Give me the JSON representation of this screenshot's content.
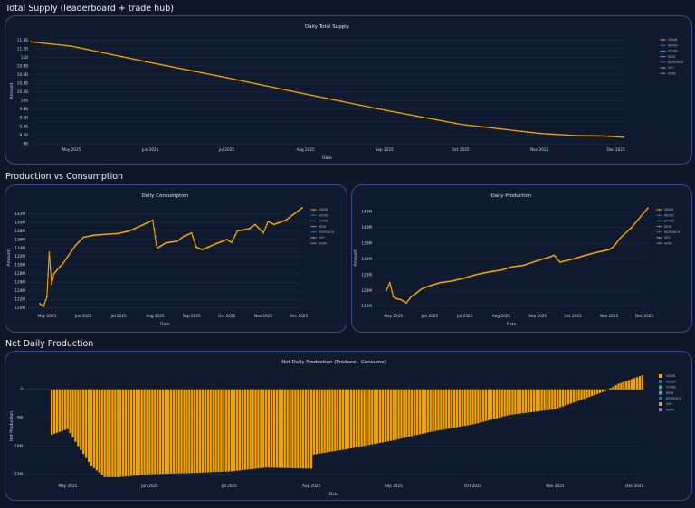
{
  "sections": {
    "supply": "Total Supply (leaderboard + trade hub)",
    "prodcons": "Production vs Consumption",
    "net": "Net Daily Production"
  },
  "legend_items": [
    "GRAIN",
    "WOOD",
    "STONE",
    "IRON",
    "RESEARCH",
    "GPU",
    "AURA"
  ],
  "colors": {
    "accent": "#f5a300",
    "background": "#0e1627",
    "panel_border": "#3b4a8a",
    "legend_colors": [
      "#f5a300",
      "#4d5ea8",
      "#4aa37b",
      "#7a8aa6",
      "#2f6f9a",
      "#c7a33d",
      "#8a78c7"
    ]
  },
  "chart_data": [
    {
      "id": "supply",
      "type": "line",
      "title": "Daily Total Supply",
      "xlabel": "Date",
      "ylabel": "Amount",
      "x_start": "2025-04-15",
      "x_end": "2025-12-04",
      "ylim": [
        9000000000,
        11450000000
      ],
      "yticks": [
        9000000000,
        9200000000,
        9400000000,
        9600000000,
        9800000000,
        10000000000,
        10200000000,
        10400000000,
        10600000000,
        10800000000,
        11000000000,
        11200000000,
        11400000000
      ],
      "ytick_labels": [
        "9B",
        "9.2B",
        "9.4B",
        "9.6B",
        "9.8B",
        "10B",
        "10.2B",
        "10.4B",
        "10.6B",
        "10.8B",
        "11B",
        "11.2B",
        "11.4B"
      ],
      "xticks": [
        "May 2025",
        "Jun 2025",
        "Jul 2025",
        "Aug 2025",
        "Sep 2025",
        "Oct 2025",
        "Nov 2025",
        "Dec 2025"
      ],
      "grid": true,
      "legend_position": "right",
      "series": [
        {
          "name": "GRAIN",
          "x": [
            "2025-04-15",
            "2025-05-01",
            "2025-06-01",
            "2025-07-01",
            "2025-08-01",
            "2025-09-01",
            "2025-10-01",
            "2025-10-20",
            "2025-11-01",
            "2025-11-15",
            "2025-11-26",
            "2025-12-04"
          ],
          "y": [
            11360000000,
            11260000000,
            10880000000,
            10530000000,
            10150000000,
            9780000000,
            9450000000,
            9320000000,
            9240000000,
            9190000000,
            9180000000,
            9150000000
          ]
        }
      ]
    },
    {
      "id": "consumption",
      "type": "line",
      "title": "Daily Consumption",
      "xlabel": "Date",
      "ylabel": "Amount",
      "x_start": "2025-04-15",
      "x_end": "2025-12-04",
      "ylim": [
        119500000,
        143800000
      ],
      "yticks": [
        120000000,
        122000000,
        124000000,
        126000000,
        128000000,
        130000000,
        132000000,
        134000000,
        136000000,
        138000000,
        140000000,
        142000000
      ],
      "ytick_labels": [
        "120M",
        "122M",
        "124M",
        "126M",
        "128M",
        "130M",
        "132M",
        "134M",
        "136M",
        "138M",
        "140M",
        "142M"
      ],
      "xticks": [
        "May 2025",
        "Jun 2025",
        "Jul 2025",
        "Aug 2025",
        "Sep 2025",
        "Oct 2025",
        "Nov 2025",
        "Dec 2025"
      ],
      "grid": true,
      "legend_position": "right",
      "series": [
        {
          "name": "GRAIN",
          "x": [
            "2025-04-25",
            "2025-04-28",
            "2025-05-01",
            "2025-05-03",
            "2025-05-05",
            "2025-05-07",
            "2025-05-10",
            "2025-05-15",
            "2025-05-20",
            "2025-05-25",
            "2025-06-01",
            "2025-06-10",
            "2025-06-20",
            "2025-07-01",
            "2025-07-10",
            "2025-07-20",
            "2025-07-30",
            "2025-08-02",
            "2025-08-03",
            "2025-08-10",
            "2025-08-20",
            "2025-08-25",
            "2025-09-01",
            "2025-09-05",
            "2025-09-10",
            "2025-09-20",
            "2025-10-01",
            "2025-10-05",
            "2025-10-10",
            "2025-10-20",
            "2025-10-25",
            "2025-11-01",
            "2025-11-05",
            "2025-11-10",
            "2025-11-20",
            "2025-12-04"
          ],
          "y": [
            121000000,
            120300000,
            122500000,
            133000000,
            125500000,
            128000000,
            129000000,
            130500000,
            132500000,
            134500000,
            136500000,
            137000000,
            137200000,
            137400000,
            138000000,
            139200000,
            140500000,
            134800000,
            134000000,
            135200000,
            135600000,
            136700000,
            137500000,
            134200000,
            133600000,
            134800000,
            136000000,
            135300000,
            138000000,
            138500000,
            139500000,
            137500000,
            140200000,
            139500000,
            140500000,
            143400000
          ]
        }
      ]
    },
    {
      "id": "production",
      "type": "line",
      "title": "Daily Production",
      "xlabel": "Date",
      "ylabel": "Amount",
      "x_start": "2025-04-15",
      "x_end": "2025-12-04",
      "ylim": [
        113800000,
        146800000
      ],
      "yticks": [
        115000000,
        120000000,
        125000000,
        130000000,
        135000000,
        140000000,
        145000000
      ],
      "ytick_labels": [
        "115M",
        "120M",
        "125M",
        "130M",
        "135M",
        "140M",
        "145M"
      ],
      "xticks": [
        "May 2025",
        "Jun 2025",
        "Jul 2025",
        "Aug 2025",
        "Sep 2025",
        "Oct 2025",
        "Nov 2025",
        "Dec 2025"
      ],
      "grid": true,
      "legend_position": "right",
      "series": [
        {
          "name": "GRAIN",
          "x": [
            "2025-04-25",
            "2025-04-28",
            "2025-05-01",
            "2025-05-03",
            "2025-05-08",
            "2025-05-12",
            "2025-05-16",
            "2025-05-20",
            "2025-05-25",
            "2025-06-01",
            "2025-06-10",
            "2025-06-20",
            "2025-07-01",
            "2025-07-10",
            "2025-07-20",
            "2025-08-01",
            "2025-08-10",
            "2025-08-20",
            "2025-09-01",
            "2025-09-10",
            "2025-09-15",
            "2025-09-20",
            "2025-10-01",
            "2025-10-10",
            "2025-10-20",
            "2025-11-01",
            "2025-11-05",
            "2025-11-10",
            "2025-11-20",
            "2025-12-04"
          ],
          "y": [
            120000000,
            122500000,
            118000000,
            117500000,
            117000000,
            116000000,
            118000000,
            119000000,
            120500000,
            121500000,
            122500000,
            123000000,
            124000000,
            125000000,
            125800000,
            126500000,
            127500000,
            128000000,
            129500000,
            130500000,
            131200000,
            129000000,
            130000000,
            131000000,
            132000000,
            133000000,
            134000000,
            136500000,
            140000000,
            146200000
          ]
        }
      ]
    },
    {
      "id": "net",
      "type": "bar",
      "title": "Net Daily Production (Produce - Consume)",
      "xlabel": "Date",
      "ylabel": "Net Production",
      "x_start": "2025-04-15",
      "x_end": "2025-12-04",
      "ylim": [
        -16000000,
        3000000
      ],
      "yticks": [
        -15000000,
        -10000000,
        -5000000,
        0
      ],
      "ytick_labels": [
        "-15M",
        "-10M",
        "-5M",
        "0"
      ],
      "xticks": [
        "May 2025",
        "Jun 2025",
        "Jul 2025",
        "Aug 2025",
        "Sep 2025",
        "Oct 2025",
        "Nov 2025",
        "Dec 2025"
      ],
      "grid": true,
      "legend_position": "right",
      "series": [
        {
          "name": "GRAIN",
          "x": [
            "2025-04-25",
            "2025-05-01",
            "2025-05-05",
            "2025-05-10",
            "2025-05-15",
            "2025-05-20",
            "2025-06-01",
            "2025-06-15",
            "2025-07-01",
            "2025-07-15",
            "2025-08-01",
            "2025-08-02",
            "2025-08-15",
            "2025-09-01",
            "2025-09-15",
            "2025-10-01",
            "2025-10-15",
            "2025-11-01",
            "2025-11-10",
            "2025-11-20",
            "2025-11-25",
            "2025-12-04"
          ],
          "y": [
            -8000000,
            -7000000,
            -10000000,
            -13500000,
            -15500000,
            -15500000,
            -15000000,
            -14800000,
            -14500000,
            -13800000,
            -14000000,
            -11500000,
            -10500000,
            -9000000,
            -7500000,
            -6200000,
            -4500000,
            -3500000,
            -2000000,
            -300000,
            1000000,
            2500000
          ]
        }
      ]
    }
  ]
}
